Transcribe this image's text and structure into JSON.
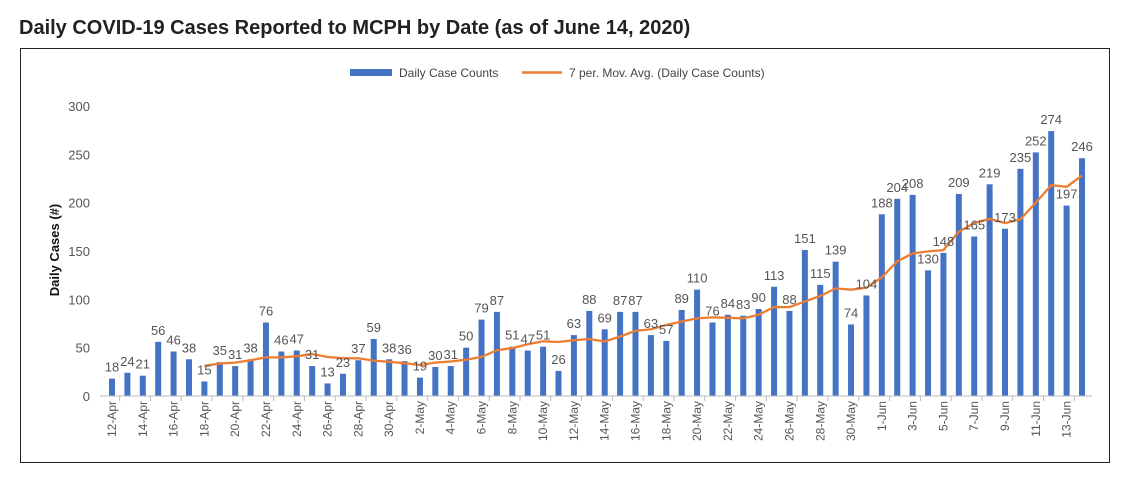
{
  "chart_data": {
    "type": "bar",
    "title": "Daily COVID-19 Cases Reported to MCPH by Date (as of June 14, 2020)",
    "xlabel": "",
    "ylabel": "Daily Cases (#)",
    "ylim": [
      0,
      300
    ],
    "yticks": [
      0,
      50,
      100,
      150,
      200,
      250,
      300
    ],
    "grid": false,
    "legend_position": "top",
    "colors": {
      "bars": "#4472C4",
      "line": "#ED7D31"
    },
    "categories": [
      "12-Apr",
      "13-Apr",
      "14-Apr",
      "15-Apr",
      "16-Apr",
      "17-Apr",
      "18-Apr",
      "19-Apr",
      "20-Apr",
      "21-Apr",
      "22-Apr",
      "23-Apr",
      "24-Apr",
      "25-Apr",
      "26-Apr",
      "27-Apr",
      "28-Apr",
      "29-Apr",
      "30-Apr",
      "1-May",
      "2-May",
      "3-May",
      "4-May",
      "5-May",
      "6-May",
      "7-May",
      "8-May",
      "9-May",
      "10-May",
      "11-May",
      "12-May",
      "13-May",
      "14-May",
      "15-May",
      "16-May",
      "17-May",
      "18-May",
      "19-May",
      "20-May",
      "21-May",
      "22-May",
      "23-May",
      "24-May",
      "25-May",
      "26-May",
      "27-May",
      "28-May",
      "29-May",
      "30-May",
      "31-May",
      "1-Jun",
      "2-Jun",
      "3-Jun",
      "4-Jun",
      "5-Jun",
      "6-Jun",
      "7-Jun",
      "8-Jun",
      "9-Jun",
      "10-Jun",
      "11-Jun",
      "12-Jun",
      "13-Jun",
      "14-Jun"
    ],
    "series": [
      {
        "name": "Daily Case Counts",
        "type": "bar",
        "values": [
          18,
          24,
          21,
          56,
          46,
          38,
          15,
          35,
          31,
          38,
          76,
          46,
          47,
          31,
          13,
          23,
          37,
          59,
          38,
          36,
          19,
          30,
          31,
          50,
          79,
          87,
          51,
          47,
          51,
          26,
          63,
          88,
          69,
          87,
          87,
          63,
          57,
          89,
          110,
          76,
          84,
          83,
          90,
          113,
          88,
          151,
          115,
          139,
          74,
          104,
          188,
          204,
          208,
          130,
          148,
          209,
          165,
          219,
          173,
          235,
          252,
          274,
          197,
          246
        ]
      },
      {
        "name": "7 per. Mov. Avg. (Daily Case Counts)",
        "type": "line",
        "values": [
          null,
          null,
          null,
          null,
          null,
          null,
          31.1,
          33.6,
          34.6,
          37.0,
          39.9,
          39.9,
          41.1,
          43.4,
          40.3,
          39.1,
          39.0,
          36.6,
          35.4,
          33.9,
          32.1,
          34.6,
          35.7,
          37.6,
          40.4,
          47.4,
          49.6,
          53.6,
          56.6,
          55.9,
          57.7,
          59.0,
          56.4,
          61.6,
          67.3,
          69.0,
          73.4,
          77.1,
          80.3,
          81.3,
          80.9,
          80.3,
          84.1,
          92.1,
          92.0,
          97.9,
          103.4,
          111.3,
          110.0,
          112.0,
          122.7,
          139.3,
          147.4,
          149.6,
          150.9,
          170.1,
          178.9,
          183.3,
          178.9,
          182.7,
          200.1,
          218.1,
          216.4,
          228.0
        ]
      }
    ]
  }
}
